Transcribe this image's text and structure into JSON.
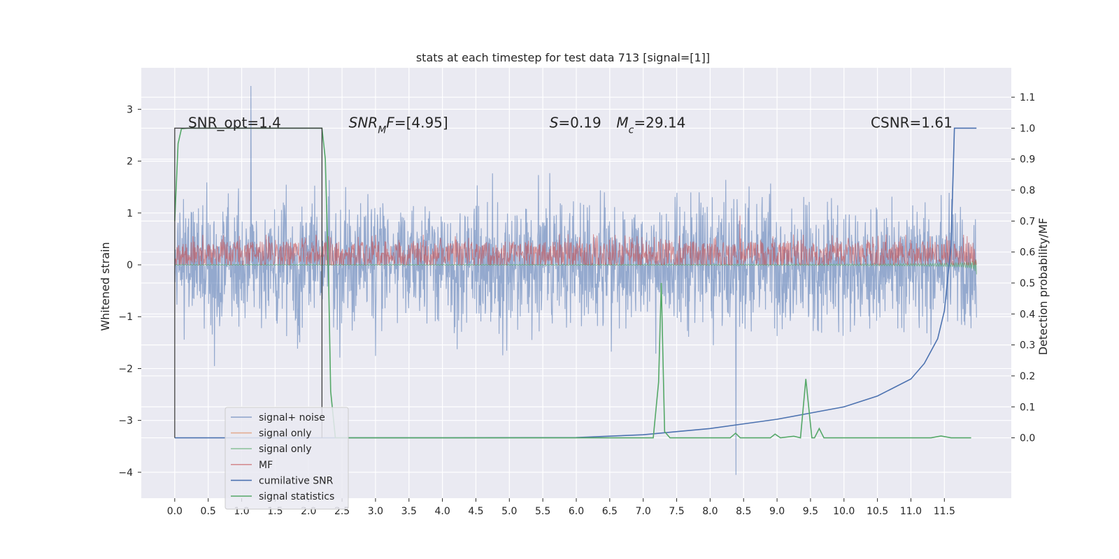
{
  "chart_data": {
    "type": "line",
    "title": "stats at each timestep for test data 713 [signal=[1]]",
    "xlabel": "",
    "ylabel": "Whitened strain",
    "y2label": "Detection probability/MF",
    "xlim": [
      -0.5,
      12.5
    ],
    "ylim": [
      -4.5,
      3.8
    ],
    "y2lim": [
      -0.195,
      1.195
    ],
    "xticks": [
      0.0,
      0.5,
      1.0,
      1.5,
      2.0,
      2.5,
      3.0,
      3.5,
      4.0,
      4.5,
      5.0,
      5.5,
      6.0,
      6.5,
      7.0,
      7.5,
      8.0,
      8.5,
      9.0,
      9.5,
      10.0,
      10.5,
      11.0,
      11.5
    ],
    "xtick_labels": [
      "0.0",
      "0.5",
      "1.0",
      "1.5",
      "2.0",
      "2.5",
      "3.0",
      "3.5",
      "4.0",
      "4.5",
      "5.0",
      "5.5",
      "6.0",
      "6.5",
      "7.0",
      "7.5",
      "8.0",
      "8.5",
      "9.0",
      "9.5",
      "10.0",
      "10.5",
      "11.0",
      "11.5"
    ],
    "yticks": [
      -4,
      -3,
      -2,
      -1,
      0,
      1,
      2,
      3
    ],
    "ytick_labels": [
      "−4",
      "−3",
      "−2",
      "−1",
      "0",
      "1",
      "2",
      "3"
    ],
    "y2ticks": [
      0.0,
      0.1,
      0.2,
      0.3,
      0.4,
      0.5,
      0.6,
      0.7,
      0.8,
      0.9,
      1.0,
      1.1
    ],
    "y2tick_labels": [
      "0.0",
      "0.1",
      "0.2",
      "0.3",
      "0.4",
      "0.5",
      "0.6",
      "0.7",
      "0.8",
      "0.9",
      "1.0",
      "1.1"
    ],
    "grid": true,
    "legend_position": "lower-left",
    "annotations": [
      {
        "parts": [
          {
            "t": "SNR_opt=1.4"
          }
        ],
        "x": 0.2,
        "y2": 1.0
      },
      {
        "parts": [
          {
            "t": "SNR",
            "i": true
          },
          {
            "t": "M",
            "i": true,
            "sub": true
          },
          {
            "t": "F",
            "i": true
          },
          {
            "t": "=[4.95]"
          }
        ],
        "x": 2.6,
        "y2": 1.0
      },
      {
        "parts": [
          {
            "t": "S",
            "i": true
          },
          {
            "t": "=0.19"
          }
        ],
        "x": 5.6,
        "y2": 1.0
      },
      {
        "parts": [
          {
            "t": "M",
            "i": true
          },
          {
            "t": "c",
            "i": true,
            "sub": true
          },
          {
            "t": "=29.14"
          }
        ],
        "x": 6.6,
        "y2": 1.0
      },
      {
        "parts": [
          {
            "t": "CSNR=1.61"
          }
        ],
        "x": 10.4,
        "y2": 1.0
      }
    ],
    "series": [
      {
        "name": "signal+ noise",
        "color": "#4c72b0",
        "axis": "y",
        "kind": "noise",
        "x_range": [
          0.0,
          11.98
        ],
        "sigma": 0.85,
        "peak_max": 3.45,
        "peak_min": -4.05
      },
      {
        "name": "signal only",
        "color": "#dd8452",
        "axis": "y",
        "kind": "hidden"
      },
      {
        "name": "signal only",
        "color": "#55a868",
        "axis": "y",
        "kind": "chirp",
        "x_range": [
          0.0,
          11.98
        ],
        "amp_end": 0.2
      },
      {
        "name": "MF",
        "color": "#c44e52",
        "axis": "y",
        "kind": "mf",
        "x_range": [
          0.0,
          11.98
        ],
        "mean": 0.2,
        "spread": 0.25,
        "peak_max": 0.95
      },
      {
        "name": "cumilative SNR",
        "color": "#4c72b0",
        "axis": "y2",
        "points": [
          [
            0.0,
            0.0
          ],
          [
            4.0,
            0.0
          ],
          [
            6.0,
            0.001
          ],
          [
            7.0,
            0.01
          ],
          [
            7.5,
            0.02
          ],
          [
            8.0,
            0.03
          ],
          [
            8.5,
            0.045
          ],
          [
            9.0,
            0.06
          ],
          [
            9.5,
            0.08
          ],
          [
            10.0,
            0.1
          ],
          [
            10.5,
            0.135
          ],
          [
            11.0,
            0.19
          ],
          [
            11.2,
            0.24
          ],
          [
            11.4,
            0.32
          ],
          [
            11.5,
            0.41
          ],
          [
            11.6,
            0.62
          ],
          [
            11.65,
            1.0
          ],
          [
            11.98,
            1.0
          ]
        ]
      },
      {
        "name": "signal statistics",
        "color": "#55a868",
        "axis": "y2",
        "points": [
          [
            0.0,
            0.7
          ],
          [
            0.05,
            0.95
          ],
          [
            0.1,
            0.998
          ],
          [
            0.2,
            1.0
          ],
          [
            2.1,
            1.0
          ],
          [
            2.2,
            1.0
          ],
          [
            2.25,
            0.9
          ],
          [
            2.3,
            0.5
          ],
          [
            2.33,
            0.15
          ],
          [
            2.4,
            0.0
          ],
          [
            7.15,
            0.0
          ],
          [
            7.23,
            0.18
          ],
          [
            7.27,
            0.5
          ],
          [
            7.32,
            0.02
          ],
          [
            7.4,
            0.0
          ],
          [
            8.3,
            0.0
          ],
          [
            8.38,
            0.015
          ],
          [
            8.45,
            0.0
          ],
          [
            8.9,
            0.0
          ],
          [
            8.97,
            0.012
          ],
          [
            9.05,
            0.0
          ],
          [
            9.25,
            0.005
          ],
          [
            9.35,
            0.0
          ],
          [
            9.43,
            0.19
          ],
          [
            9.52,
            0.0
          ],
          [
            9.56,
            0.0
          ],
          [
            9.63,
            0.03
          ],
          [
            9.7,
            0.0
          ],
          [
            11.3,
            0.0
          ],
          [
            11.45,
            0.006
          ],
          [
            11.6,
            0.0
          ],
          [
            11.9,
            0.0
          ]
        ]
      },
      {
        "name": "",
        "color": "#404040",
        "axis": "y2",
        "kind": "window",
        "points": [
          [
            0.0,
            0.0
          ],
          [
            0.0,
            1.0
          ],
          [
            2.2,
            1.0
          ],
          [
            2.2,
            0.0
          ]
        ]
      }
    ]
  }
}
